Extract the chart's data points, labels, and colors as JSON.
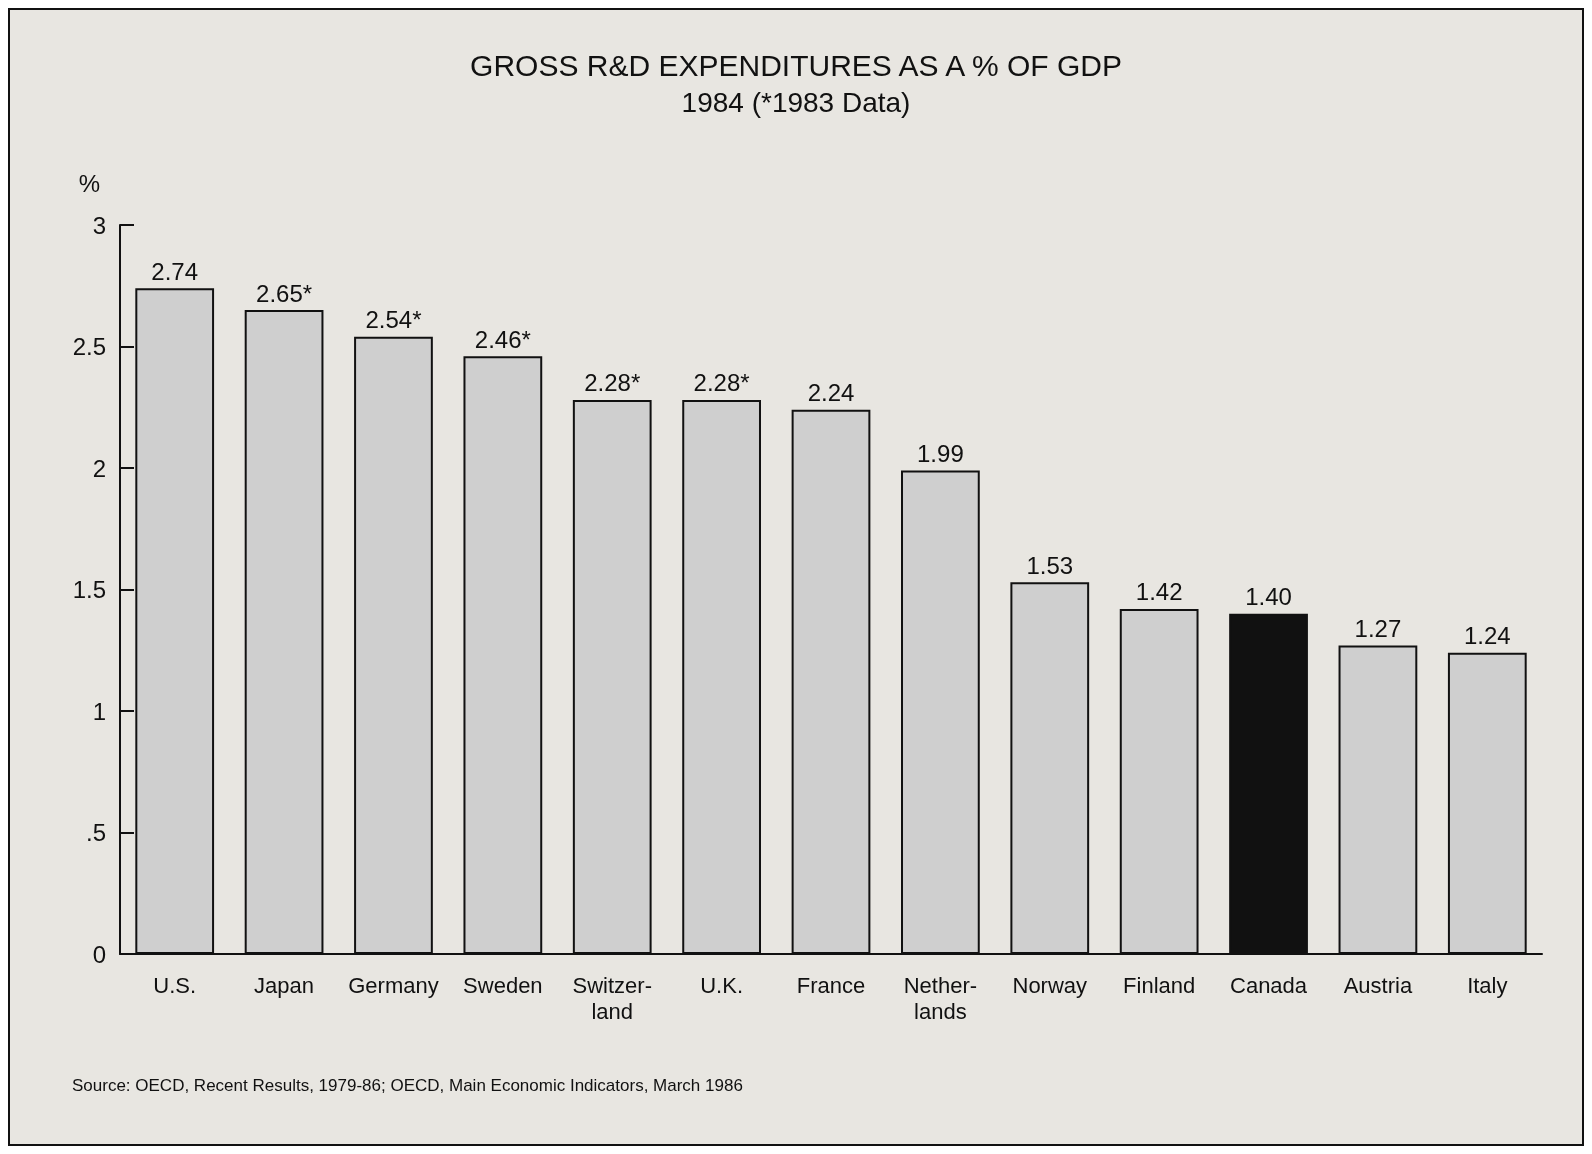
{
  "chart_data": {
    "type": "bar",
    "title": "GROSS R&D EXPENDITURES AS A % OF GDP",
    "subtitle": "1984 (*1983 Data)",
    "ylabel": "%",
    "categories": [
      "U.S.",
      "Japan",
      "Germany",
      "Sweden",
      "Switzer-\nland",
      "U.K.",
      "France",
      "Nether-\nlands",
      "Norway",
      "Finland",
      "Canada",
      "Austria",
      "Italy"
    ],
    "values": [
      2.74,
      2.65,
      2.54,
      2.46,
      2.28,
      2.28,
      2.24,
      1.99,
      1.53,
      1.42,
      1.4,
      1.27,
      1.24
    ],
    "value_labels": [
      "2.74",
      "2.65*",
      "2.54*",
      "2.46*",
      "2.28*",
      "2.28*",
      "2.24",
      "1.99",
      "1.53",
      "1.42",
      "1.40",
      "1.27",
      "1.24"
    ],
    "colors": [
      "#cfcfcf",
      "#cfcfcf",
      "#cfcfcf",
      "#cfcfcf",
      "#cfcfcf",
      "#cfcfcf",
      "#cfcfcf",
      "#cfcfcf",
      "#cfcfcf",
      "#cfcfcf",
      "#111111",
      "#cfcfcf",
      "#cfcfcf"
    ],
    "ylim": [
      0,
      3
    ],
    "yticks": [
      0,
      {
        "value": 0.5,
        "label": ".5"
      },
      1,
      1.5,
      2,
      2.5,
      3
    ],
    "grid": false,
    "annotations": [
      "Source: OECD, Recent Results, 1979-86; OECD, Main Economic Indicators, March 1986"
    ]
  }
}
